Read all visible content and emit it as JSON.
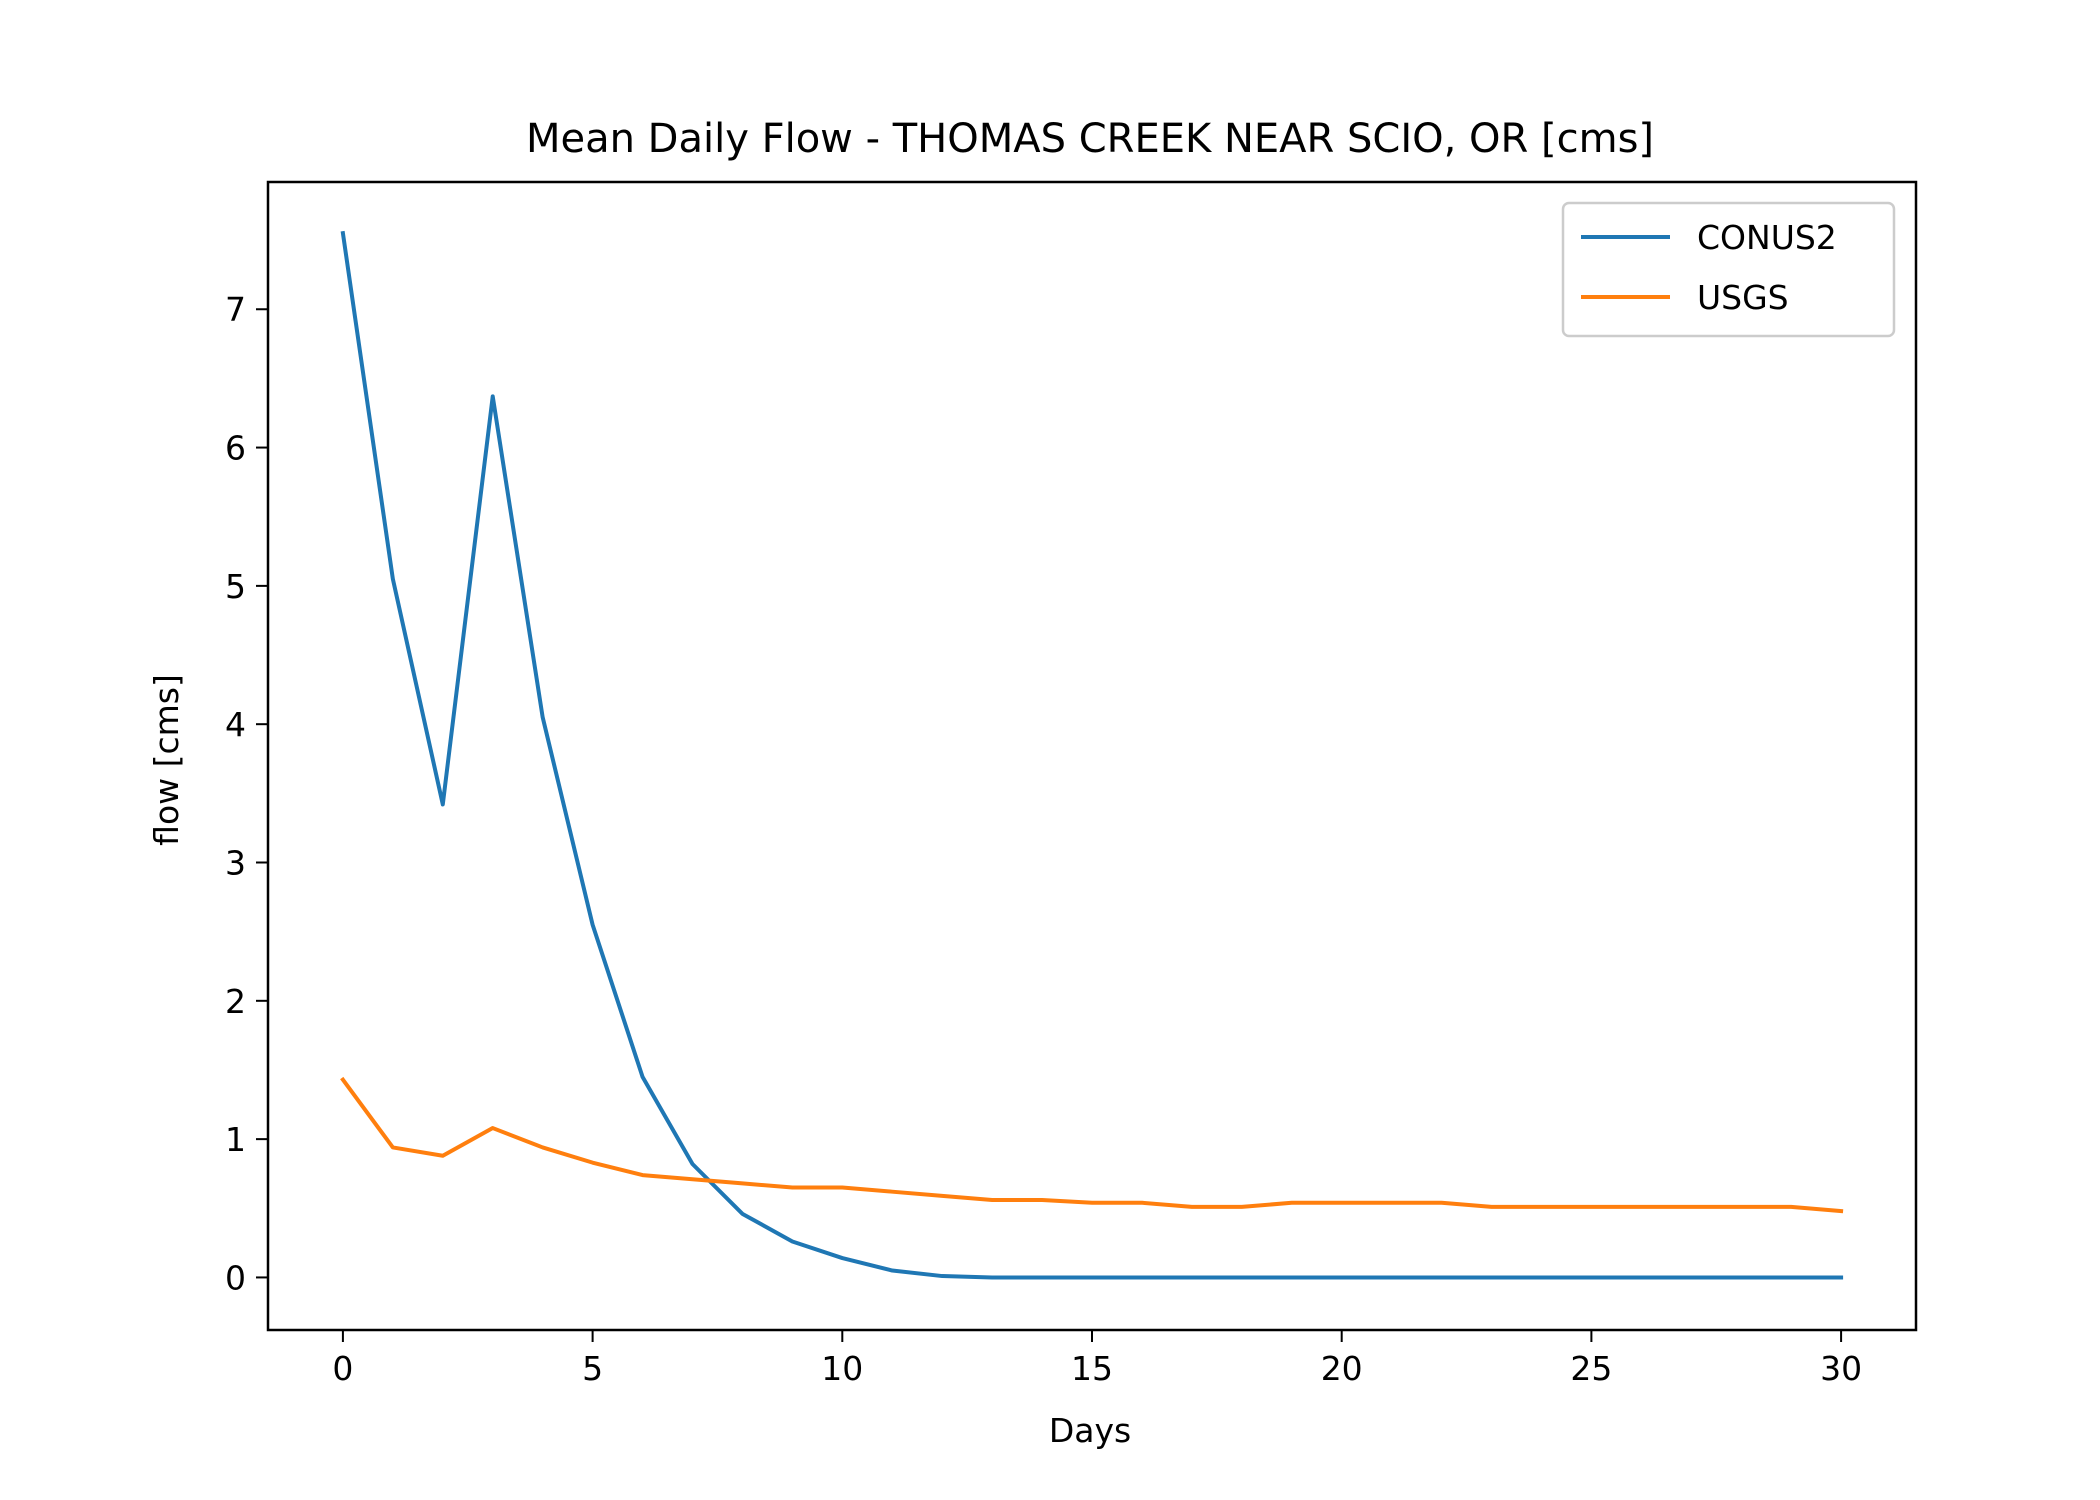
{
  "chart_data": {
    "type": "line",
    "title": "Mean Daily Flow - THOMAS CREEK NEAR SCIO, OR [cms]",
    "xlabel": "Days",
    "ylabel": "flow [cms]",
    "xlim": [
      -1.5,
      31.5
    ],
    "ylim": [
      -0.38,
      7.92
    ],
    "xticks": [
      0,
      5,
      10,
      15,
      20,
      25,
      30
    ],
    "yticks": [
      0,
      1,
      2,
      3,
      4,
      5,
      6,
      7
    ],
    "grid": false,
    "legend_position": "top-right",
    "x": [
      0,
      1,
      2,
      3,
      4,
      5,
      6,
      7,
      8,
      9,
      10,
      11,
      12,
      13,
      14,
      15,
      16,
      17,
      18,
      19,
      20,
      21,
      22,
      23,
      24,
      25,
      26,
      27,
      28,
      29,
      30
    ],
    "series": [
      {
        "name": "CONUS2",
        "color": "#1f77b4",
        "values": [
          7.55,
          5.05,
          3.42,
          6.37,
          4.05,
          2.55,
          1.45,
          0.82,
          0.46,
          0.26,
          0.14,
          0.05,
          0.01,
          0.0,
          0.0,
          0.0,
          0.0,
          0.0,
          0.0,
          0.0,
          0.0,
          0.0,
          0.0,
          0.0,
          0.0,
          0.0,
          0.0,
          0.0,
          0.0,
          0.0,
          0.0
        ]
      },
      {
        "name": "USGS",
        "color": "#ff7f0e",
        "values": [
          1.43,
          0.94,
          0.88,
          1.08,
          0.94,
          0.83,
          0.74,
          0.71,
          0.68,
          0.65,
          0.65,
          0.62,
          0.59,
          0.56,
          0.56,
          0.54,
          0.54,
          0.51,
          0.51,
          0.54,
          0.54,
          0.54,
          0.54,
          0.51,
          0.51,
          0.51,
          0.51,
          0.51,
          0.51,
          0.51,
          0.48
        ]
      }
    ]
  }
}
